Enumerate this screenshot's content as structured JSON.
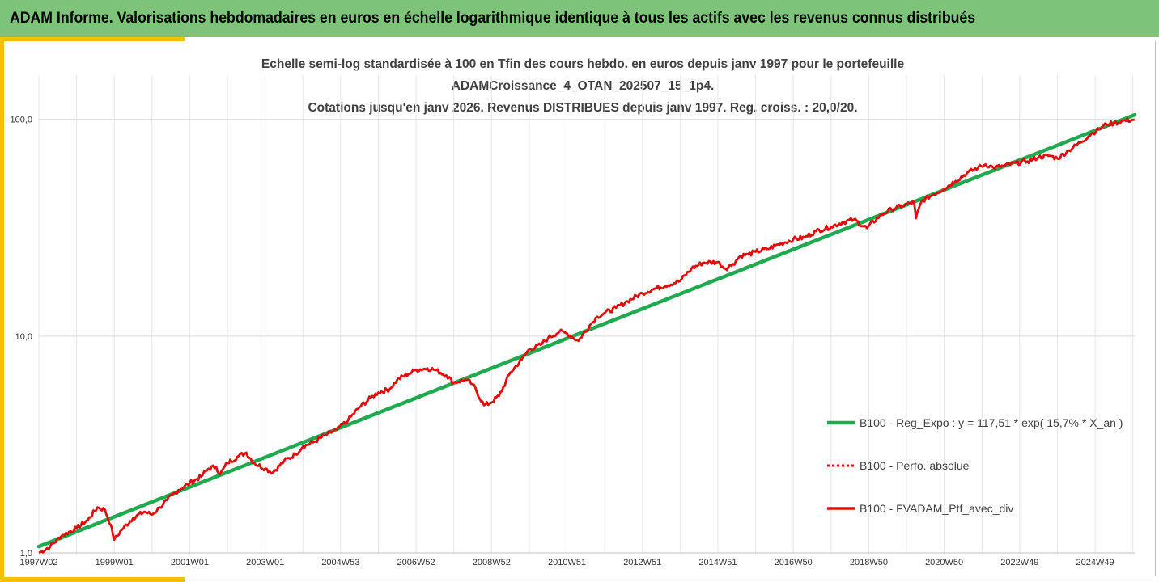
{
  "header": {
    "title": "ADAM Informe. Valorisations hebdomadaires en euros en échelle logarithmique identique à tous les actifs avec les revenus connus distribués"
  },
  "colors": {
    "header_bg": "#7dc47a",
    "accent": "#f2c200",
    "regression": "#1faa4f",
    "portfolio": "#e30b0b"
  },
  "chart_data": {
    "type": "line",
    "title_lines": [
      "Echelle semi-log standardisée à 100 en Tfin des cours hebdo.  en euros depuis janv 1997 pour le portefeuille",
      "ADAMCroissance_4_OTAN_202507_15_1p4.",
      "Cotations  jusqu'en janv 2026. Revenus DISTRIBUES depuis janv 1997. Reg. croiss. : 20,0/20."
    ],
    "y_scale": "log",
    "ylim": [
      1,
      160
    ],
    "y_ticks": [
      1,
      10,
      100
    ],
    "y_tick_labels": [
      "1,0",
      "10,0",
      "100,0"
    ],
    "xlim": [
      1997.0,
      2026.05
    ],
    "x_ticks": [
      1997.0,
      1999.0,
      2001.0,
      2003.0,
      2005.0,
      2007.0,
      2009.0,
      2011.0,
      2013.0,
      2015.0,
      2017.0,
      2019.0,
      2021.0,
      2023.0,
      2025.0
    ],
    "x_tick_labels": [
      "1997W02",
      "1999W01",
      "2001W01",
      "2003W01",
      "2004W53",
      "2006W52",
      "2008W52",
      "2010W51",
      "2012W51",
      "2014W51",
      "2016W50",
      "2018W50",
      "2020W50",
      "2022W49",
      "2024W49"
    ],
    "grid": true,
    "legend_position": "right",
    "series": [
      {
        "name": "B100 - Reg_Expo : y = 117,51 * exp( 15,7% *  X_an )",
        "style": "solid-thick",
        "x": [
          1997.0,
          2026.05
        ],
        "y": [
          1.07,
          105
        ]
      },
      {
        "name": "B100 - Perfo. absolue",
        "style": "dotted",
        "x": [],
        "y": []
      },
      {
        "name": "B100 - FVADAM_Ptf_avec_div",
        "style": "solid",
        "x": [
          1997.0,
          1997.3,
          1997.6,
          1998.0,
          1998.3,
          1998.55,
          1998.75,
          1998.9,
          1999.0,
          1999.2,
          1999.5,
          1999.8,
          2000.0,
          2000.2,
          2000.4,
          2000.7,
          2001.0,
          2001.3,
          2001.5,
          2001.7,
          2001.8,
          2002.0,
          2002.3,
          2002.5,
          2002.7,
          2003.0,
          2003.2,
          2003.5,
          2003.8,
          2004.0,
          2004.3,
          2004.6,
          2004.9,
          2005.2,
          2005.5,
          2005.8,
          2006.0,
          2006.3,
          2006.5,
          2006.8,
          2007.0,
          2007.3,
          2007.5,
          2007.8,
          2008.0,
          2008.3,
          2008.5,
          2008.8,
          2008.95,
          2009.2,
          2009.5,
          2009.8,
          2010.0,
          2010.3,
          2010.5,
          2010.8,
          2011.0,
          2011.3,
          2011.6,
          2011.8,
          2012.0,
          2012.3,
          2012.6,
          2013.0,
          2013.3,
          2013.6,
          2014.0,
          2014.3,
          2014.6,
          2015.0,
          2015.2,
          2015.4,
          2015.6,
          2015.8,
          2016.0,
          2016.3,
          2016.6,
          2017.0,
          2017.3,
          2017.6,
          2018.0,
          2018.3,
          2018.6,
          2018.95,
          2019.3,
          2019.6,
          2019.9,
          2020.2,
          2020.25,
          2020.4,
          2020.7,
          2021.0,
          2021.3,
          2021.6,
          2021.9,
          2022.1,
          2022.3,
          2022.6,
          2022.9,
          2023.2,
          2023.5,
          2023.8,
          2024.0,
          2024.3,
          2024.6,
          2024.9,
          2025.1,
          2025.3,
          2025.5,
          2025.7,
          2026.05
        ],
        "y": [
          1.0,
          1.07,
          1.2,
          1.3,
          1.42,
          1.62,
          1.58,
          1.35,
          1.15,
          1.28,
          1.45,
          1.55,
          1.5,
          1.62,
          1.75,
          1.95,
          2.1,
          2.25,
          2.45,
          2.5,
          2.3,
          2.6,
          2.8,
          2.9,
          2.6,
          2.45,
          2.35,
          2.65,
          2.85,
          3.1,
          3.25,
          3.5,
          3.7,
          4.1,
          4.7,
          5.2,
          5.5,
          5.7,
          6.3,
          6.7,
          7.0,
          7.1,
          7.0,
          6.6,
          6.1,
          6.3,
          6.0,
          4.8,
          4.9,
          5.3,
          6.8,
          7.8,
          8.7,
          9.1,
          9.8,
          10.5,
          10.3,
          9.5,
          11.2,
          12.3,
          12.8,
          13.5,
          14.5,
          15.8,
          16.5,
          17.1,
          18.0,
          20.5,
          21.8,
          22.0,
          20.5,
          21.5,
          23.5,
          23.8,
          24.5,
          25.2,
          26.5,
          28.0,
          28.5,
          30.5,
          32.0,
          33.5,
          34.5,
          31.5,
          36.0,
          38.5,
          40.0,
          41.5,
          35.0,
          42.0,
          45.0,
          48.0,
          52.0,
          56.5,
          60.0,
          62.0,
          60.0,
          61.0,
          63.0,
          64.0,
          67.0,
          68.0,
          66.0,
          72.0,
          78.0,
          86.0,
          90.0,
          95.0,
          96.0,
          98.0,
          100.0
        ]
      }
    ]
  }
}
